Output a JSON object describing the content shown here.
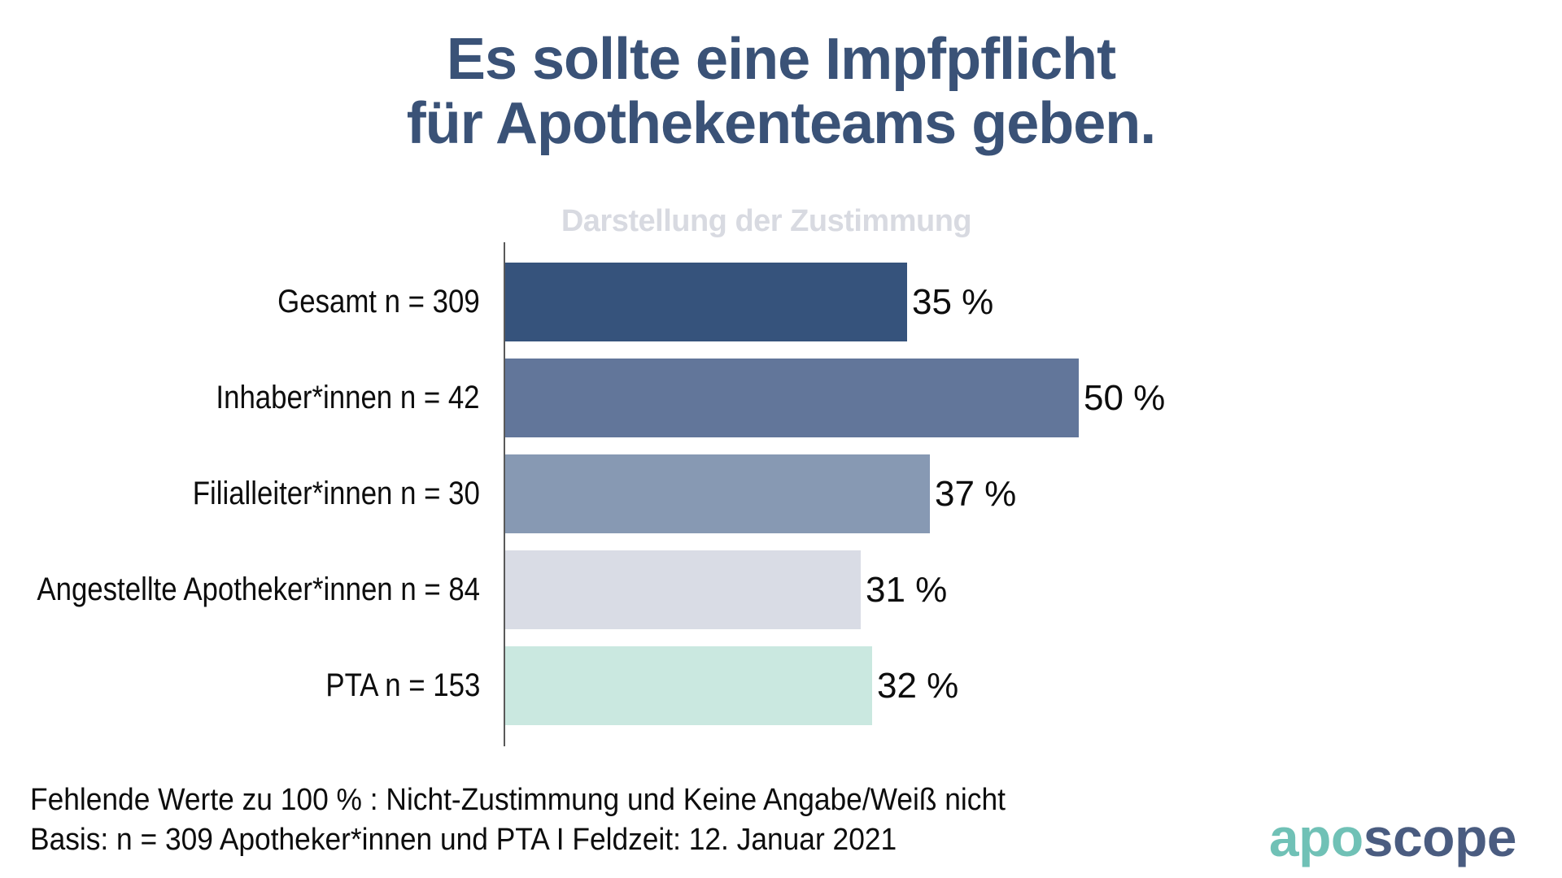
{
  "title": {
    "line1": "Es sollte eine Impfpflicht",
    "line2": "für Apothekenteams geben."
  },
  "subtitle": "Darstellung der Zustimmung",
  "chart_data": {
    "type": "bar",
    "orientation": "horizontal",
    "title": "Darstellung der Zustimmung",
    "categories": [
      "Gesamt n = 309",
      "Inhaber*innen n = 42",
      "Filialleiter*innen n = 30",
      "Angestellte Apotheker*innen n = 84",
      "PTA n = 153"
    ],
    "values": [
      35,
      50,
      37,
      31,
      32
    ],
    "value_labels": [
      "35 %",
      "50 %",
      "37 %",
      "31 %",
      "32 %"
    ],
    "bar_colors": [
      "#36537C",
      "#62769A",
      "#8799B3",
      "#D9DCE5",
      "#CAE8E0"
    ],
    "xlim": [
      0,
      53
    ],
    "grid": false,
    "legend": false,
    "axis_line_color": "#595959"
  },
  "footer": {
    "line1": "Fehlende Werte zu 100 % : Nicht-Zustimmung und Keine Angabe/Weiß nicht",
    "line2": "Basis: n = 309 Apotheker*innen und PTA I Feldzeit: 12. Januar 2021"
  },
  "logo": {
    "part1": "apo",
    "part2": "scope",
    "part1_color": "#70C1B6",
    "part2_color": "#4A5C80"
  },
  "colors": {
    "title": "#3A5277",
    "subtitle": "#D8DAE1",
    "text": "#0D0D0D"
  }
}
